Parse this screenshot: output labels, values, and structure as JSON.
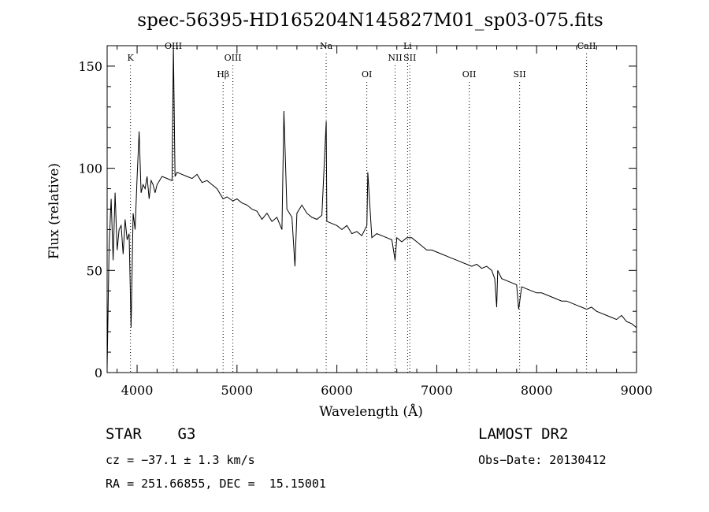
{
  "chart_data": {
    "type": "line",
    "title": "spec-56395-HD165204N145827M01_sp03-075.fits",
    "xlabel": "Wavelength (Å)",
    "ylabel": "Flux (relative)",
    "xlim": [
      3700,
      9000
    ],
    "ylim": [
      0,
      160
    ],
    "x_ticks": [
      4000,
      5000,
      6000,
      7000,
      8000,
      9000
    ],
    "y_ticks": [
      0,
      50,
      100,
      150
    ],
    "grid": false,
    "colors": {
      "line": "#000000",
      "axes": "#000000",
      "background": "#ffffff"
    },
    "lines": [
      {
        "label": "K",
        "x": 3934,
        "row": 1
      },
      {
        "label": "OIII",
        "x": 4363,
        "row": 0
      },
      {
        "label": "Hβ",
        "x": 4861,
        "row": 2
      },
      {
        "label": "OIII",
        "x": 4959,
        "row": 1
      },
      {
        "label": "Na",
        "x": 5893,
        "row": 0
      },
      {
        "label": "OI",
        "x": 6300,
        "row": 2
      },
      {
        "label": "Li",
        "x": 6708,
        "row": 0
      },
      {
        "label": "NII",
        "x": 6583,
        "row": 1
      },
      {
        "label": "SII",
        "x": 6730,
        "row": 1
      },
      {
        "label": "OII",
        "x": 7325,
        "row": 2
      },
      {
        "label": "SII",
        "x": 7830,
        "row": 2
      },
      {
        "label": "CaII",
        "x": 8500,
        "row": 0
      }
    ],
    "series": [
      {
        "x": [
          3700,
          3720,
          3740,
          3760,
          3780,
          3800,
          3820,
          3840,
          3860,
          3880,
          3900,
          3920,
          3940,
          3960,
          3980,
          4000,
          4020,
          4040,
          4060,
          4080,
          4100,
          4120,
          4140,
          4160,
          4180,
          4200,
          4250,
          4300,
          4350,
          4363,
          4380,
          4400,
          4450,
          4500,
          4550,
          4600,
          4650,
          4700,
          4750,
          4800,
          4861,
          4900,
          4959,
          5000,
          5050,
          5100,
          5150,
          5200,
          5250,
          5300,
          5350,
          5400,
          5450,
          5470,
          5500,
          5550,
          5580,
          5600,
          5650,
          5700,
          5750,
          5800,
          5850,
          5893,
          5900,
          5950,
          6000,
          6050,
          6100,
          6150,
          6200,
          6250,
          6300,
          6310,
          6350,
          6400,
          6450,
          6500,
          6550,
          6583,
          6600,
          6650,
          6700,
          6750,
          6800,
          6850,
          6900,
          6950,
          7000,
          7050,
          7100,
          7150,
          7200,
          7250,
          7300,
          7350,
          7400,
          7450,
          7500,
          7550,
          7580,
          7600,
          7610,
          7650,
          7700,
          7750,
          7800,
          7820,
          7850,
          7900,
          7950,
          8000,
          8050,
          8100,
          8150,
          8200,
          8250,
          8300,
          8350,
          8400,
          8450,
          8500,
          8550,
          8600,
          8650,
          8700,
          8750,
          8800,
          8850,
          8900,
          8950,
          9000
        ],
        "y": [
          2,
          62,
          85,
          55,
          88,
          60,
          70,
          72,
          58,
          75,
          65,
          68,
          22,
          78,
          70,
          95,
          118,
          88,
          92,
          90,
          96,
          85,
          94,
          92,
          88,
          92,
          96,
          95,
          94,
          160,
          96,
          98,
          97,
          96,
          95,
          97,
          93,
          94,
          92,
          90,
          85,
          86,
          84,
          85,
          83,
          82,
          80,
          79,
          75,
          78,
          74,
          76,
          70,
          128,
          80,
          76,
          52,
          78,
          82,
          78,
          76,
          75,
          77,
          123,
          74,
          73,
          72,
          70,
          72,
          68,
          69,
          67,
          72,
          98,
          66,
          68,
          67,
          66,
          65,
          55,
          66,
          64,
          66,
          66,
          64,
          62,
          60,
          60,
          59,
          58,
          57,
          56,
          55,
          54,
          53,
          52,
          53,
          51,
          52,
          50,
          46,
          32,
          50,
          46,
          45,
          44,
          43,
          31,
          42,
          41,
          40,
          39,
          39,
          38,
          37,
          36,
          35,
          35,
          34,
          33,
          32,
          31,
          32,
          30,
          29,
          28,
          27,
          26,
          28,
          25,
          24,
          22
        ]
      }
    ]
  },
  "info": {
    "object": "STAR    G3",
    "survey": "LAMOST DR2",
    "cz": "cz = −37.1 ± 1.3 km/s",
    "obs_date": "Obs−Date: 20130412",
    "radec": "RA = 251.66855, DEC =  15.15001"
  }
}
